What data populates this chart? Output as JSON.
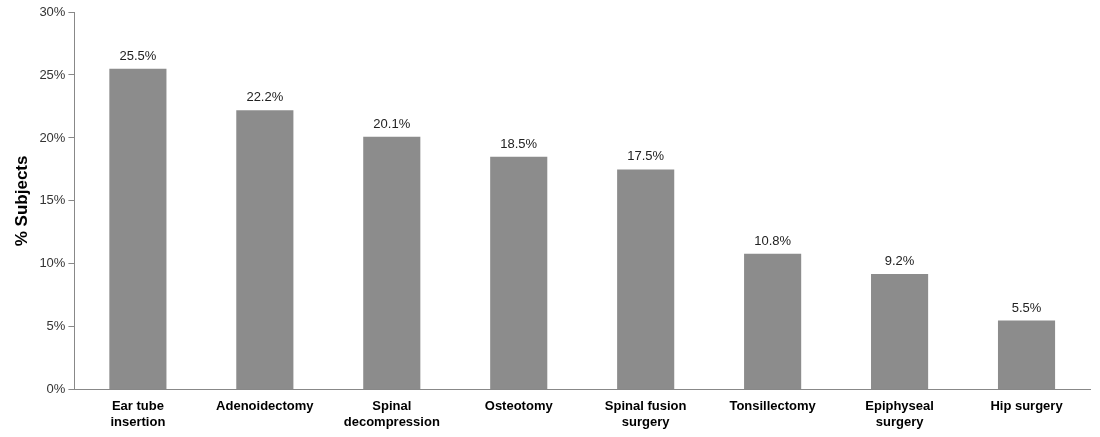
{
  "chart_data": {
    "type": "bar",
    "ylabel": "% Subjects",
    "categories": [
      "Ear tube insertion",
      "Adenoidectomy",
      "Spinal decompression",
      "Osteotomy",
      "Spinal fusion surgery",
      "Tonsillectomy",
      "Epiphyseal surgery",
      "Hip surgery"
    ],
    "values": [
      25.5,
      22.2,
      20.1,
      18.5,
      17.5,
      10.8,
      9.2,
      5.5
    ],
    "value_labels": [
      "25.5%",
      "22.2%",
      "20.1%",
      "18.5%",
      "17.5%",
      "10.8%",
      "9.2%",
      "5.5%"
    ],
    "color": "#8c8c8c",
    "ylim": [
      0,
      30
    ],
    "yticks": [
      {
        "value": 0,
        "label": "0%"
      },
      {
        "value": 5,
        "label": "5%"
      },
      {
        "value": 10,
        "label": "10%"
      },
      {
        "value": 15,
        "label": "15%"
      },
      {
        "value": 20,
        "label": "20%"
      },
      {
        "value": 25,
        "label": "25%"
      },
      {
        "value": 30,
        "label": "30%"
      }
    ],
    "grid": false,
    "legend": false
  }
}
